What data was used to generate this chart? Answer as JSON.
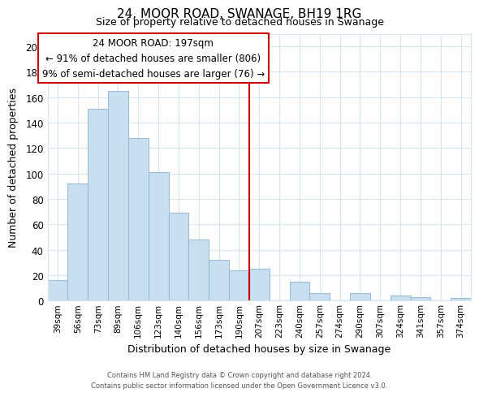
{
  "title": "24, MOOR ROAD, SWANAGE, BH19 1RG",
  "subtitle": "Size of property relative to detached houses in Swanage",
  "xlabel": "Distribution of detached houses by size in Swanage",
  "ylabel": "Number of detached properties",
  "bar_labels": [
    "39sqm",
    "56sqm",
    "73sqm",
    "89sqm",
    "106sqm",
    "123sqm",
    "140sqm",
    "156sqm",
    "173sqm",
    "190sqm",
    "207sqm",
    "223sqm",
    "240sqm",
    "257sqm",
    "274sqm",
    "290sqm",
    "307sqm",
    "324sqm",
    "341sqm",
    "357sqm",
    "374sqm"
  ],
  "bar_values": [
    16,
    92,
    151,
    165,
    128,
    101,
    69,
    48,
    32,
    24,
    25,
    0,
    15,
    6,
    0,
    6,
    0,
    4,
    3,
    0,
    2
  ],
  "bar_color": "#c8dff0",
  "bar_edgecolor": "#9cbdd8",
  "vline_x_index": 9.5,
  "vline_color": "#cc0000",
  "annotation_title": "24 MOOR ROAD: 197sqm",
  "annotation_line1": "← 91% of detached houses are smaller (806)",
  "annotation_line2": "9% of semi-detached houses are larger (76) →",
  "annotation_box_facecolor": "#ffffff",
  "annotation_box_edgecolor": "#cc0000",
  "ylim": [
    0,
    210
  ],
  "yticks": [
    0,
    20,
    40,
    60,
    80,
    100,
    120,
    140,
    160,
    180,
    200
  ],
  "footer1": "Contains HM Land Registry data © Crown copyright and database right 2024.",
  "footer2": "Contains public sector information licensed under the Open Government Licence v3.0.",
  "bg_color": "#ffffff",
  "plot_bg_color": "#ffffff",
  "grid_color": "#d8e4f0"
}
